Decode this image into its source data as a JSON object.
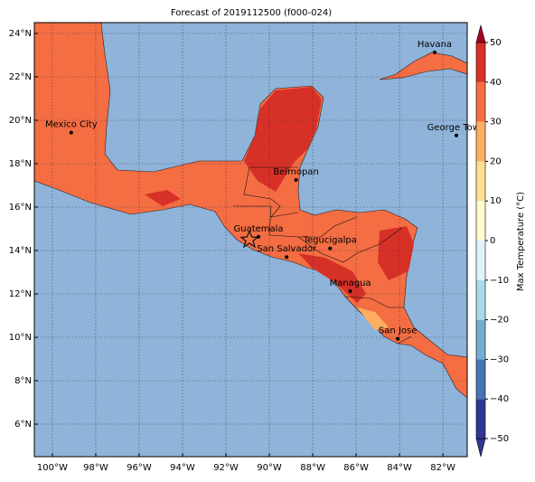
{
  "title": "Forecast of 2019112500 (f000-024)",
  "xlim": [
    -100.83,
    -80.88
  ],
  "ylim": [
    4.5,
    24.5
  ],
  "xticks": [
    {
      "value": -100,
      "label": "100°W"
    },
    {
      "value": -98,
      "label": "98°W"
    },
    {
      "value": -96,
      "label": "96°W"
    },
    {
      "value": -94,
      "label": "94°W"
    },
    {
      "value": -92,
      "label": "92°W"
    },
    {
      "value": -90,
      "label": "90°W"
    },
    {
      "value": -88,
      "label": "88°W"
    },
    {
      "value": -86,
      "label": "86°W"
    },
    {
      "value": -84,
      "label": "84°W"
    },
    {
      "value": -82,
      "label": "82°W"
    }
  ],
  "yticks": [
    {
      "value": 6,
      "label": "6°N"
    },
    {
      "value": 8,
      "label": "8°N"
    },
    {
      "value": 10,
      "label": "10°N"
    },
    {
      "value": 12,
      "label": "12°N"
    },
    {
      "value": 14,
      "label": "14°N"
    },
    {
      "value": 16,
      "label": "16°N"
    },
    {
      "value": 18,
      "label": "18°N"
    },
    {
      "value": 20,
      "label": "20°N"
    },
    {
      "value": 22,
      "label": "22°N"
    },
    {
      "value": 24,
      "label": "24°N"
    }
  ],
  "cities": [
    {
      "name": "Havana",
      "lon": -82.38,
      "lat": 23.13
    },
    {
      "name": "Mexico City",
      "lon": -99.13,
      "lat": 19.43
    },
    {
      "name": "George Town",
      "lon": -81.38,
      "lat": 19.3
    },
    {
      "name": "Belmopan",
      "lon": -88.77,
      "lat": 17.25
    },
    {
      "name": "Guatemala",
      "lon": -90.5,
      "lat": 14.63
    },
    {
      "name": "Tegucigalpa",
      "lon": -87.2,
      "lat": 14.1
    },
    {
      "name": "San Salvador",
      "lon": -89.2,
      "lat": 13.7
    },
    {
      "name": "Managua",
      "lon": -86.27,
      "lat": 12.13
    },
    {
      "name": "San Jose",
      "lon": -84.08,
      "lat": 9.93
    }
  ],
  "colorbar": {
    "label": "Max Temperature (°C)",
    "ticks": [
      {
        "value": -50,
        "label": "−50"
      },
      {
        "value": -40,
        "label": "−40"
      },
      {
        "value": -30,
        "label": "−30"
      },
      {
        "value": -20,
        "label": "−20"
      },
      {
        "value": -10,
        "label": "−10"
      },
      0,
      10,
      20,
      30,
      40,
      50
    ],
    "colors": [
      "#313695",
      "#4575b4",
      "#74add1",
      "#abd9e9",
      "#e0f3f8",
      "#fffbd0",
      "#fee090",
      "#fdae61",
      "#f46d43",
      "#d73027",
      "#a50026"
    ]
  }
}
